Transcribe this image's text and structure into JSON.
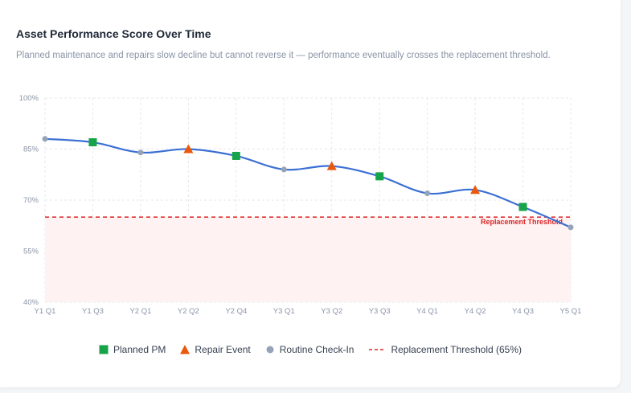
{
  "header": {
    "title": "Asset Performance Score Over Time",
    "subtitle": "Planned maintenance and repairs slow decline but cannot reverse it — performance eventually crosses the replacement threshold."
  },
  "chart_data": {
    "type": "line",
    "x": [
      "Y1 Q1",
      "Y1 Q3",
      "Y2 Q1",
      "Y2 Q2",
      "Y2 Q4",
      "Y3 Q1",
      "Y3 Q2",
      "Y3 Q3",
      "Y4 Q1",
      "Y4 Q2",
      "Y4 Q3",
      "Y5 Q1"
    ],
    "values": [
      88,
      87,
      84,
      85,
      83,
      79,
      80,
      77,
      72,
      73,
      68,
      62
    ],
    "event_types": [
      "routine",
      "pm",
      "routine",
      "repair",
      "pm",
      "routine",
      "repair",
      "pm",
      "routine",
      "repair",
      "pm",
      "routine"
    ],
    "ylim": [
      40,
      100
    ],
    "y_ticks": [
      40,
      55,
      70,
      85,
      100
    ],
    "y_tick_labels": [
      "40%",
      "55%",
      "70%",
      "85%",
      "100%"
    ],
    "threshold": {
      "value": 65,
      "label": "Replacement Threshold"
    },
    "grid": true,
    "legend_position": "bottom",
    "legend": [
      {
        "key": "pm",
        "label": "Planned PM",
        "marker": "square",
        "color": "#16a34a"
      },
      {
        "key": "repair",
        "label": "Repair Event",
        "marker": "triangle",
        "color": "#ea580c"
      },
      {
        "key": "routine",
        "label": "Routine Check-In",
        "marker": "circle",
        "color": "#94a3b8"
      },
      {
        "key": "threshold",
        "label": "Replacement Threshold (65%)",
        "marker": "dashed-line",
        "color": "#dc2626"
      }
    ],
    "colors": {
      "line": "#3b6fd4",
      "threshold_fill": "#fef2f2",
      "grid": "#e5e7eb"
    }
  }
}
